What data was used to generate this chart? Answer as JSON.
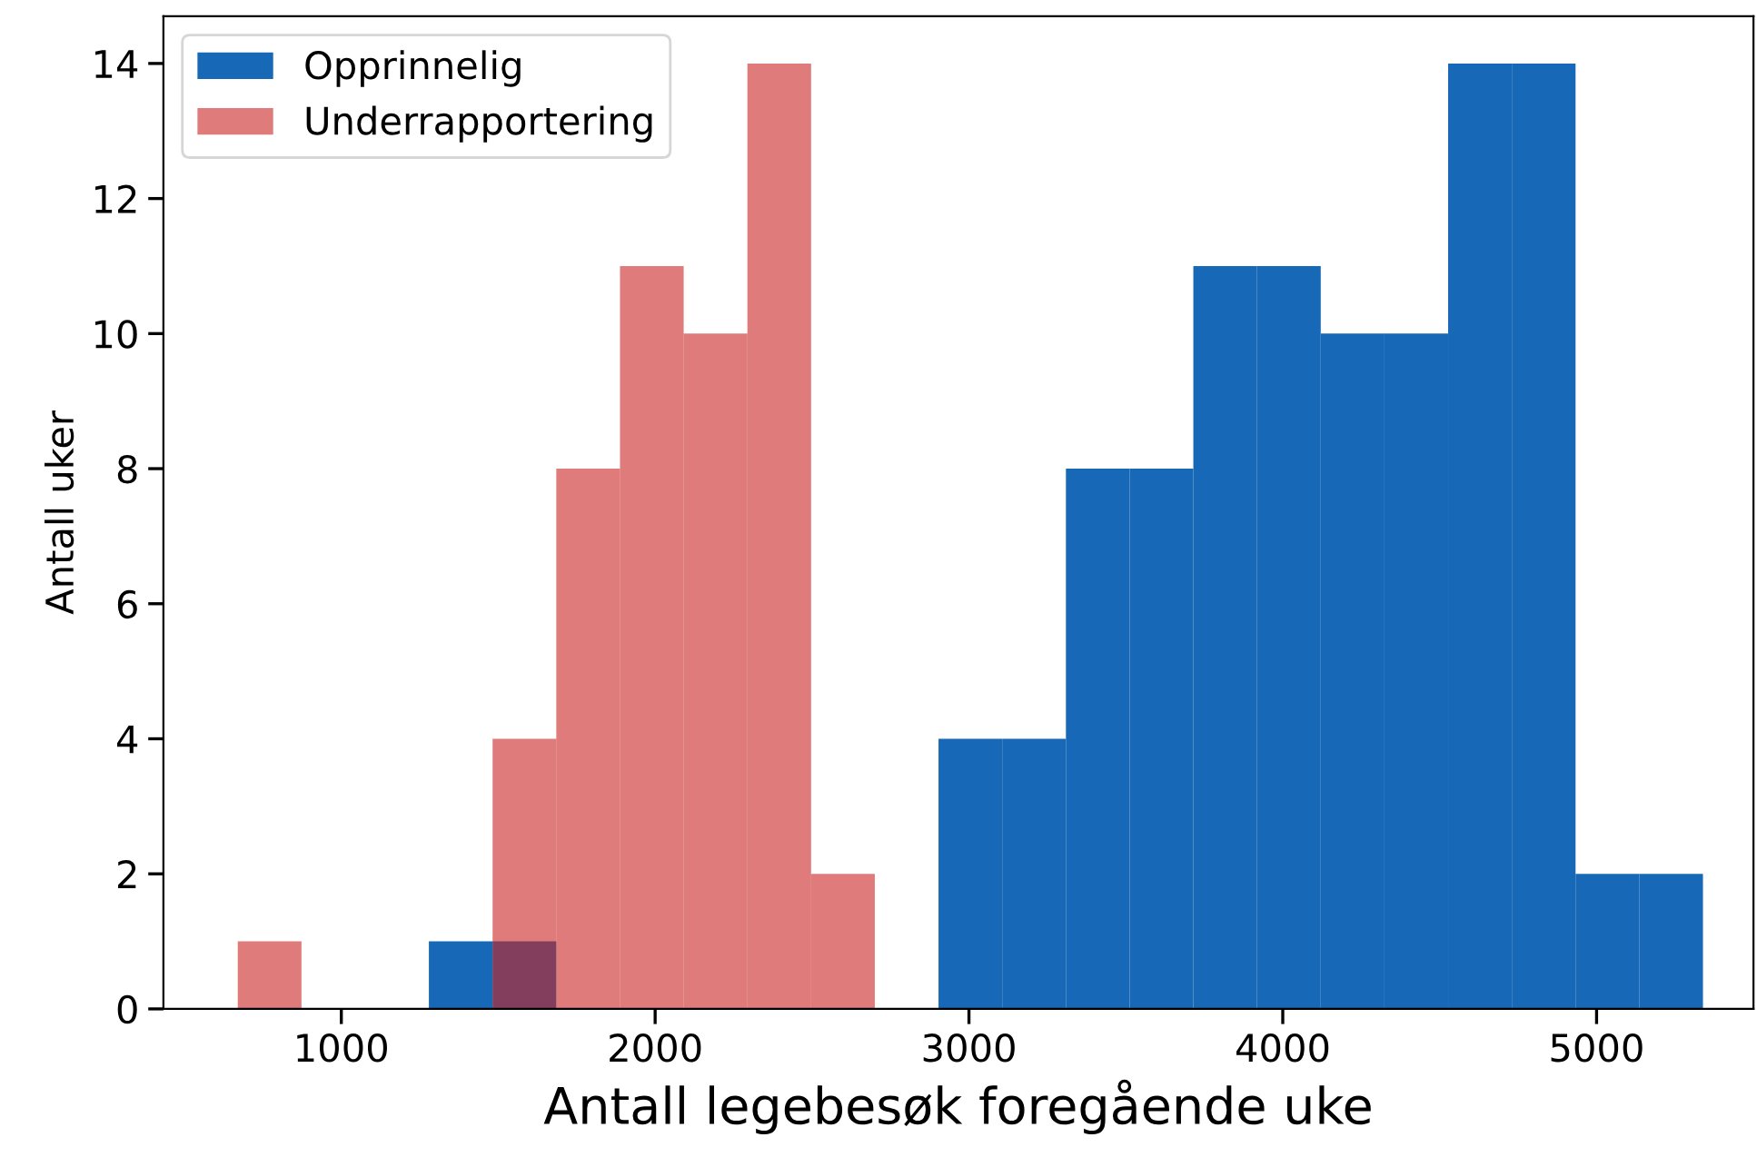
{
  "chart_data": {
    "type": "histogram",
    "xlabel": "Antall legebesøk foregående uke",
    "ylabel": "Antall uker",
    "bins": [
      670,
      873,
      1076,
      1279,
      1482,
      1685,
      1888,
      2091,
      2294,
      2497,
      2700,
      2903,
      3106,
      3309,
      3512,
      3715,
      3918,
      4121,
      4324,
      4527,
      4730,
      4933,
      5136,
      5339
    ],
    "series": [
      {
        "name": "Opprinnelig",
        "color": "#1768b6",
        "values": [
          null,
          null,
          null,
          1,
          1,
          0,
          0,
          0,
          0,
          0,
          0,
          4,
          4,
          8,
          8,
          11,
          11,
          10,
          10,
          14,
          14,
          2,
          2
        ]
      },
      {
        "name": "Underrapportering",
        "color": "#e07b7b",
        "values": [
          1,
          0,
          0,
          0,
          4,
          8,
          11,
          10,
          14,
          2,
          null,
          null,
          null,
          null,
          null,
          null,
          null,
          null,
          null,
          null,
          null,
          null,
          null
        ]
      }
    ],
    "xlim": [
      433,
      5500
    ],
    "xticks": [
      1000,
      2000,
      3000,
      4000,
      5000
    ],
    "ylim": [
      0,
      14.7
    ],
    "yticks": [
      0,
      2,
      4,
      6,
      8,
      10,
      12,
      14
    ],
    "grid": false,
    "legend": "top left"
  }
}
